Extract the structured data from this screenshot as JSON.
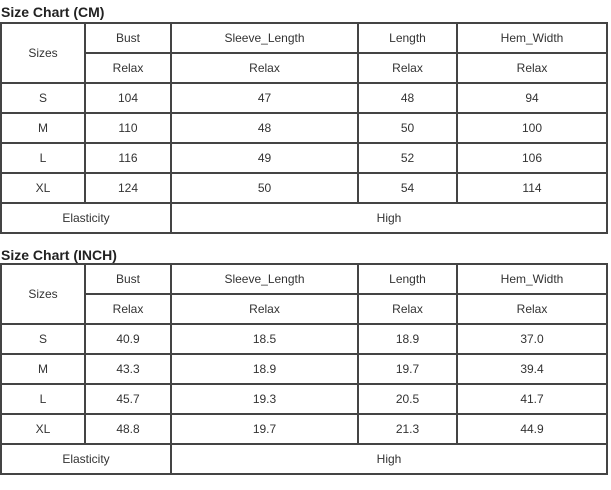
{
  "tables": [
    {
      "title": "Size Chart (CM)",
      "sizes_label": "Sizes",
      "columns": [
        "Bust",
        "Sleeve_Length",
        "Length",
        "Hem_Width"
      ],
      "fit": [
        "Relax",
        "Relax",
        "Relax",
        "Relax"
      ],
      "rows": [
        {
          "size": "S",
          "values": [
            "104",
            "47",
            "48",
            "94"
          ]
        },
        {
          "size": "M",
          "values": [
            "110",
            "48",
            "50",
            "100"
          ]
        },
        {
          "size": "L",
          "values": [
            "116",
            "49",
            "52",
            "106"
          ]
        },
        {
          "size": "XL",
          "values": [
            "124",
            "50",
            "54",
            "114"
          ]
        }
      ],
      "elasticity_label": "Elasticity",
      "elasticity_value": "High"
    },
    {
      "title": "Size Chart (INCH)",
      "sizes_label": "Sizes",
      "columns": [
        "Bust",
        "Sleeve_Length",
        "Length",
        "Hem_Width"
      ],
      "fit": [
        "Relax",
        "Relax",
        "Relax",
        "Relax"
      ],
      "rows": [
        {
          "size": "S",
          "values": [
            "40.9",
            "18.5",
            "18.9",
            "37.0"
          ]
        },
        {
          "size": "M",
          "values": [
            "43.3",
            "18.9",
            "19.7",
            "39.4"
          ]
        },
        {
          "size": "L",
          "values": [
            "45.7",
            "19.3",
            "20.5",
            "41.7"
          ]
        },
        {
          "size": "XL",
          "values": [
            "48.8",
            "19.7",
            "21.3",
            "44.9"
          ]
        }
      ],
      "elasticity_label": "Elasticity",
      "elasticity_value": "High"
    }
  ]
}
